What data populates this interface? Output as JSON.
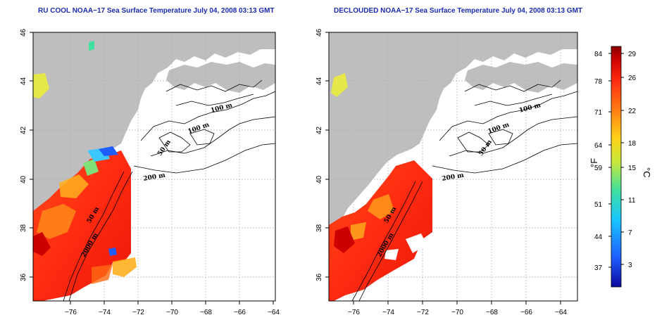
{
  "panels": [
    {
      "title": "RU COOL NOAA−17 Sea Surface Temperature July 04, 2008 03:13 GMT",
      "contours": [
        "100 m",
        "100 m",
        "50 m",
        "200 m",
        "50 m",
        "2000 m"
      ]
    },
    {
      "title": "DECLOUDED NOAA−17 Sea Surface Temperature July 04, 2008 03:13 GMT",
      "contours": [
        "100 m",
        "100 m",
        "50 m",
        "200 m",
        "50 m",
        "2000 m"
      ]
    }
  ],
  "axes": {
    "x_ticks": [
      "−76",
      "−74",
      "−72",
      "−70",
      "−68",
      "−66",
      "−64"
    ],
    "y_ticks": [
      "46",
      "44",
      "42",
      "40",
      "38",
      "36"
    ]
  },
  "colorbar": {
    "f_label": "°F",
    "c_label": "°C",
    "f_ticks": [
      "84",
      "78",
      "71",
      "64",
      "59",
      "51",
      "44",
      "37"
    ],
    "c_ticks": [
      "29",
      "26",
      "22",
      "18",
      "15",
      "11",
      "7",
      "3"
    ],
    "colors": [
      "#0a0a9c",
      "#1f5cff",
      "#19c6ff",
      "#3fe0a0",
      "#c8e83a",
      "#ffd21a",
      "#ff7a14",
      "#ff2a10",
      "#c80000",
      "#8a0000"
    ]
  }
}
